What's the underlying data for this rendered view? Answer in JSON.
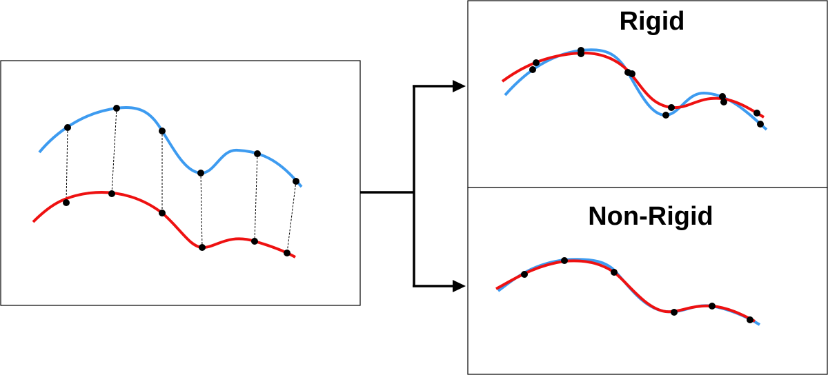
{
  "diagram": {
    "panels": {
      "rigid": {
        "title": "Rigid"
      },
      "non_rigid": {
        "title": "Non-Rigid"
      }
    },
    "colors": {
      "source_curve": "#3d9bf0",
      "target_curve": "#ee1111",
      "points": "#000000",
      "correspondence_lines": "#000000",
      "frames": "#000000"
    }
  }
}
